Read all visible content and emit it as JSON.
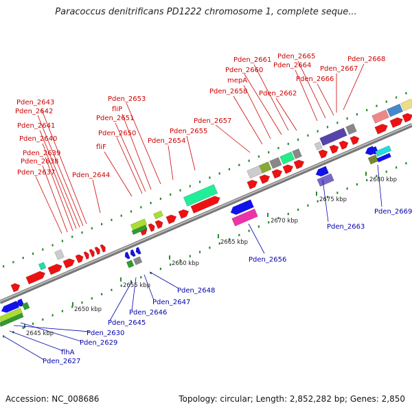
{
  "title": "Paracoccus denitrificans PD1222 chromosome 1, complete seque...",
  "footer": {
    "accession": "Accession: NC_008686",
    "summary": "Topology: circular; Length: 2,852,282 bp; Genes: 2,850"
  },
  "colors": {
    "forward_label": "#cc0000",
    "reverse_label": "#0000aa",
    "forward_gene": "#ee1111",
    "reverse_gene": "#1111ee",
    "backbone": "#888888",
    "tick": "#228822"
  },
  "ruler": [
    {
      "label": "2645 kbp"
    },
    {
      "label": "2650 kbp"
    },
    {
      "label": "2655 kbp"
    },
    {
      "label": "2660 kbp"
    },
    {
      "label": "2665 kbp"
    },
    {
      "label": "2670 kbp"
    },
    {
      "label": "2675 kbp"
    },
    {
      "label": "2680 kbp"
    }
  ],
  "forward_labels": [
    {
      "text": "Pden_2643"
    },
    {
      "text": "Pden_2642"
    },
    {
      "text": "Pden_2641"
    },
    {
      "text": "Pden_2640"
    },
    {
      "text": "Pden_2639"
    },
    {
      "text": "Pden_2638"
    },
    {
      "text": "Pden_2637"
    },
    {
      "text": "Pden_2644"
    },
    {
      "text": "fliF"
    },
    {
      "text": "Pden_2650"
    },
    {
      "text": "Pden_2651"
    },
    {
      "text": "fliP"
    },
    {
      "text": "Pden_2653"
    },
    {
      "text": "Pden_2654"
    },
    {
      "text": "Pden_2655"
    },
    {
      "text": "Pden_2657"
    },
    {
      "text": "Pden_2658"
    },
    {
      "text": "mepA"
    },
    {
      "text": "Pden_2660"
    },
    {
      "text": "Pden_2661"
    },
    {
      "text": "Pden_2662"
    },
    {
      "text": "Pden_2665"
    },
    {
      "text": "Pden_2664"
    },
    {
      "text": "Pden_2666"
    },
    {
      "text": "Pden_2667"
    },
    {
      "text": "Pden_2668"
    }
  ],
  "reverse_labels": [
    {
      "text": "Pden_2663"
    },
    {
      "text": "Pden_2669"
    },
    {
      "text": "Pden_2656"
    },
    {
      "text": "Pden_2648"
    },
    {
      "text": "Pden_2647"
    },
    {
      "text": "Pden_2646"
    },
    {
      "text": "Pden_2645"
    },
    {
      "text": "Pden_2630"
    },
    {
      "text": "Pden_2629"
    },
    {
      "text": "flhA"
    },
    {
      "text": "Pden_2627"
    }
  ]
}
